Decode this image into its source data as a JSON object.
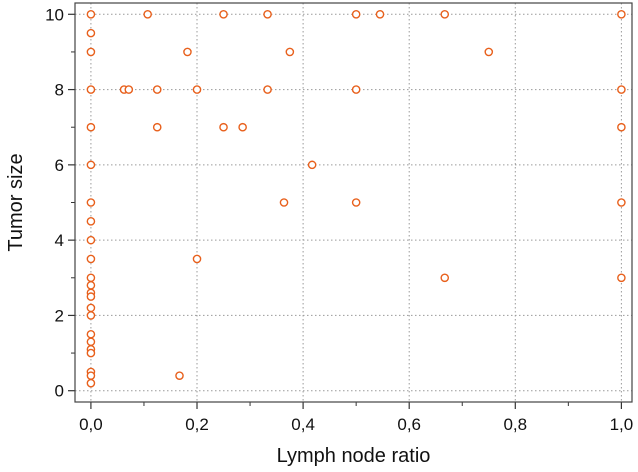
{
  "chart_data": {
    "type": "scatter",
    "xlabel": "Lymph node ratio",
    "ylabel": "Tumor size",
    "xlim": [
      -0.03,
      1.02
    ],
    "ylim": [
      -0.3,
      10.3
    ],
    "x_ticks": [
      0,
      0.2,
      0.4,
      0.6,
      0.8,
      1.0
    ],
    "x_tick_labels": [
      "0,0",
      "0,2",
      "0,4",
      "0,6",
      "0,8",
      "1,0"
    ],
    "y_ticks": [
      0,
      2,
      4,
      6,
      8,
      10
    ],
    "y_tick_labels": [
      "0",
      "2",
      "4",
      "6",
      "8",
      "10"
    ],
    "grid": true,
    "marker_color": "#e8601c",
    "points": [
      {
        "x": 0.0,
        "y": 10
      },
      {
        "x": 0.0,
        "y": 9.5
      },
      {
        "x": 0.0,
        "y": 9
      },
      {
        "x": 0.0,
        "y": 8
      },
      {
        "x": 0.0,
        "y": 7
      },
      {
        "x": 0.0,
        "y": 6
      },
      {
        "x": 0.0,
        "y": 5
      },
      {
        "x": 0.0,
        "y": 4.5
      },
      {
        "x": 0.0,
        "y": 4
      },
      {
        "x": 0.0,
        "y": 3.5
      },
      {
        "x": 0.0,
        "y": 3
      },
      {
        "x": 0.0,
        "y": 2.8
      },
      {
        "x": 0.0,
        "y": 2.6
      },
      {
        "x": 0.0,
        "y": 2.5
      },
      {
        "x": 0.0,
        "y": 2.2
      },
      {
        "x": 0.0,
        "y": 2
      },
      {
        "x": 0.0,
        "y": 1.5
      },
      {
        "x": 0.0,
        "y": 1.3
      },
      {
        "x": 0.0,
        "y": 1.1
      },
      {
        "x": 0.0,
        "y": 1
      },
      {
        "x": 0.0,
        "y": 0.5
      },
      {
        "x": 0.0,
        "y": 0.4
      },
      {
        "x": 0.0,
        "y": 0.2
      },
      {
        "x": 0.107,
        "y": 10
      },
      {
        "x": 0.25,
        "y": 10
      },
      {
        "x": 0.333,
        "y": 10
      },
      {
        "x": 0.5,
        "y": 10
      },
      {
        "x": 0.545,
        "y": 10
      },
      {
        "x": 0.667,
        "y": 10
      },
      {
        "x": 1.0,
        "y": 10
      },
      {
        "x": 0.182,
        "y": 9
      },
      {
        "x": 0.375,
        "y": 9
      },
      {
        "x": 0.75,
        "y": 9
      },
      {
        "x": 0.0625,
        "y": 8
      },
      {
        "x": 0.0714,
        "y": 8
      },
      {
        "x": 0.125,
        "y": 8
      },
      {
        "x": 0.2,
        "y": 8
      },
      {
        "x": 0.333,
        "y": 8
      },
      {
        "x": 0.5,
        "y": 8
      },
      {
        "x": 1.0,
        "y": 8
      },
      {
        "x": 0.125,
        "y": 7
      },
      {
        "x": 0.25,
        "y": 7
      },
      {
        "x": 0.286,
        "y": 7
      },
      {
        "x": 1.0,
        "y": 7
      },
      {
        "x": 0.417,
        "y": 6
      },
      {
        "x": 0.364,
        "y": 5
      },
      {
        "x": 0.5,
        "y": 5
      },
      {
        "x": 1.0,
        "y": 5
      },
      {
        "x": 0.2,
        "y": 3.5
      },
      {
        "x": 0.667,
        "y": 3
      },
      {
        "x": 1.0,
        "y": 3
      },
      {
        "x": 0.167,
        "y": 0.4
      }
    ]
  }
}
